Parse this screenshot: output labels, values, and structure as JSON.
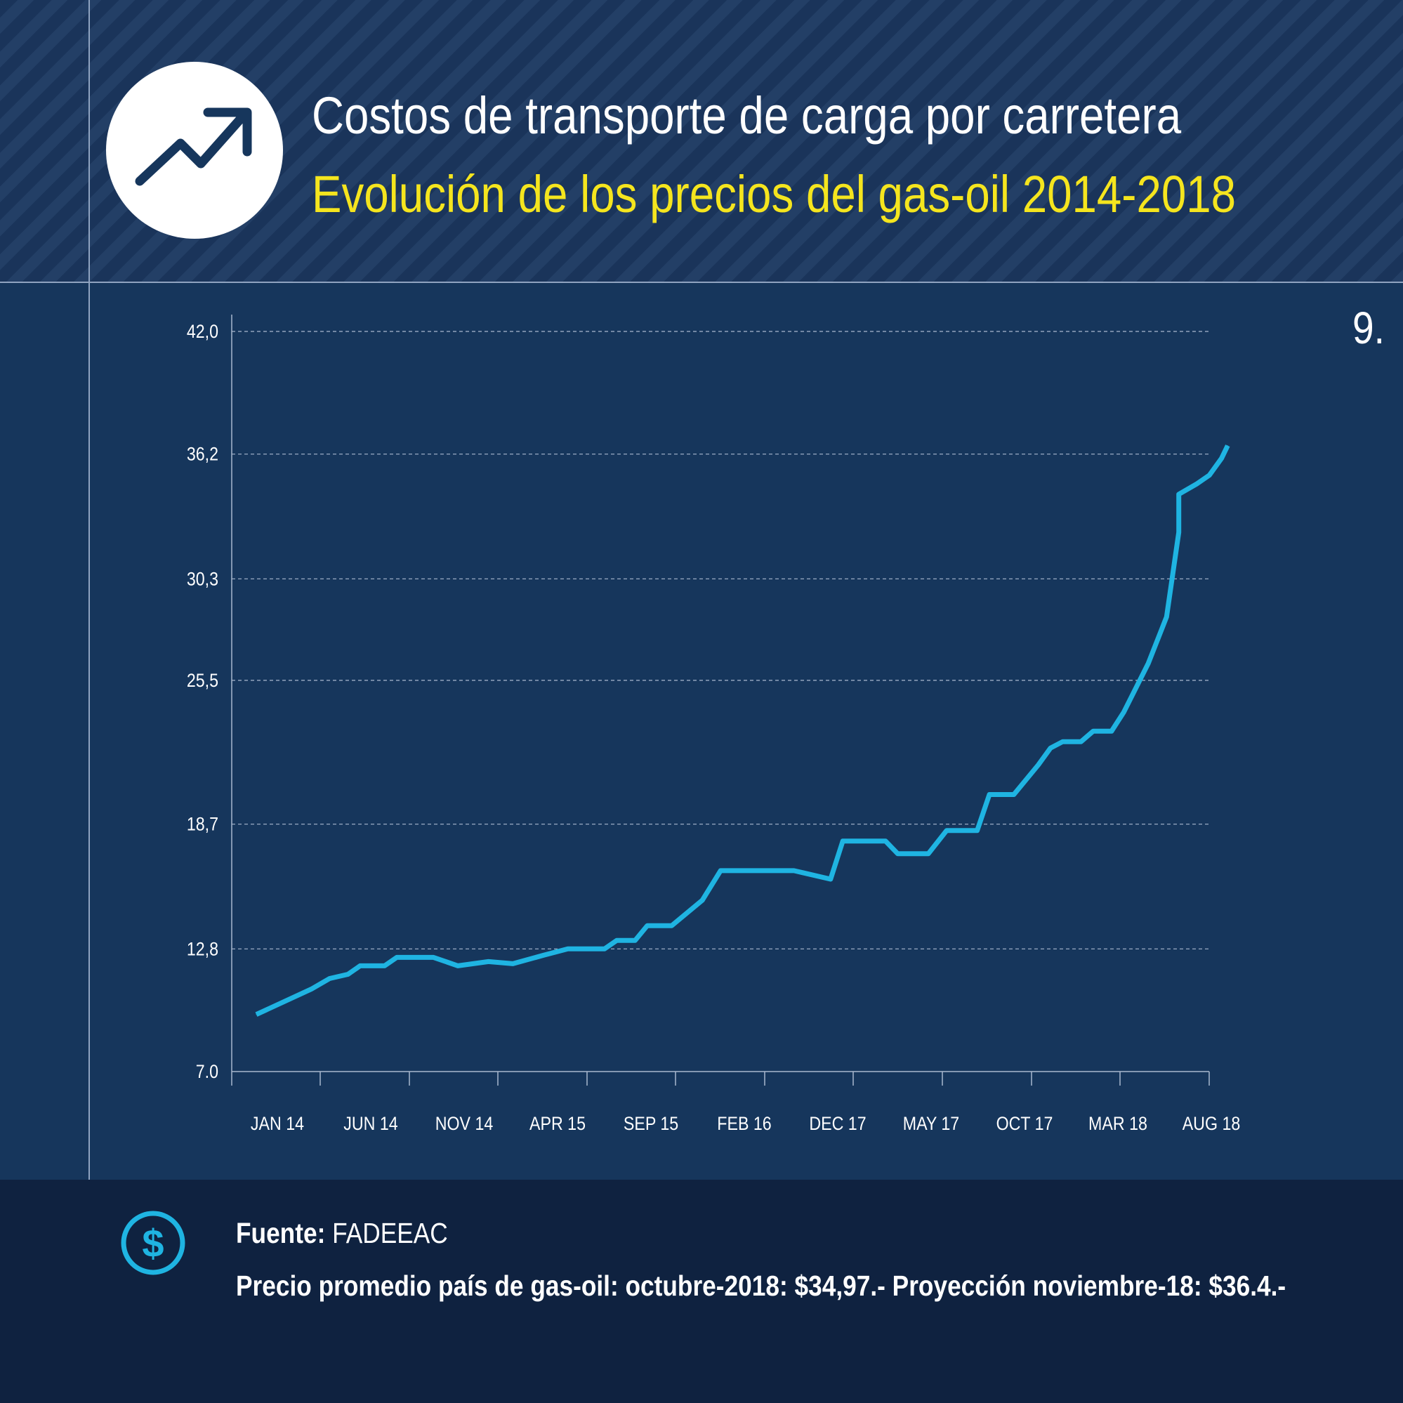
{
  "header": {
    "title": "Costos de transporte de carga por carretera",
    "subtitle": "Evolución de los precios del gas-oil 2014-2018",
    "page_number": "9.",
    "icon": "trending-up-icon"
  },
  "footer": {
    "source_label": "Fuente:",
    "source_value": "FADEEAC",
    "note": "Precio promedio país de gas-oil: octubre-2018: $34,97.- Proyección noviembre-18: $36.4.-",
    "icon": "dollar-icon"
  },
  "colors": {
    "line": "#1fb4e2",
    "title": "#ffffff",
    "subtitle": "#f5e51e",
    "grid": "#a9b8cf",
    "axis_text": "#ffffff"
  },
  "chart_data": {
    "type": "line",
    "title": "Evolución de los precios del gas-oil 2014-2018",
    "xlabel": "",
    "ylabel": "",
    "ylim": [
      7.0,
      42.0
    ],
    "y_ticks": [
      "7.0",
      "12,8",
      "18,7",
      "25,5",
      "30,3",
      "36,2",
      "42,0"
    ],
    "y_tick_values": [
      7.0,
      12.8,
      18.7,
      25.5,
      30.3,
      36.2,
      42.0
    ],
    "x_tick_labels": [
      "JAN 14",
      "JUN 14",
      "NOV 14",
      "APR 15",
      "SEP 15",
      "FEB 16",
      "DEC 17",
      "MAY 17",
      "OCT 17",
      "MAR 18",
      "AUG 18"
    ],
    "grid": "horizontal dashed",
    "series": [
      {
        "points": [
          [
            0.0,
            9.7
          ],
          [
            0.9,
            10.9
          ],
          [
            1.2,
            11.4
          ],
          [
            1.5,
            11.6
          ],
          [
            1.7,
            12.0
          ],
          [
            2.1,
            12.0
          ],
          [
            2.3,
            12.4
          ],
          [
            2.9,
            12.4
          ],
          [
            3.3,
            12.0
          ],
          [
            3.8,
            12.2
          ],
          [
            4.2,
            12.1
          ],
          [
            4.7,
            12.5
          ],
          [
            5.1,
            12.8
          ],
          [
            5.7,
            12.8
          ],
          [
            5.9,
            13.2
          ],
          [
            6.2,
            13.2
          ],
          [
            6.4,
            13.9
          ],
          [
            6.8,
            13.9
          ],
          [
            7.3,
            15.1
          ],
          [
            7.6,
            16.5
          ],
          [
            8.8,
            16.5
          ],
          [
            9.4,
            16.1
          ],
          [
            9.6,
            17.9
          ],
          [
            10.3,
            17.9
          ],
          [
            10.5,
            17.3
          ],
          [
            11.0,
            17.3
          ],
          [
            11.3,
            18.4
          ],
          [
            11.8,
            18.4
          ],
          [
            12.0,
            20.1
          ],
          [
            12.4,
            20.1
          ],
          [
            12.8,
            21.5
          ],
          [
            13.0,
            22.3
          ],
          [
            13.2,
            22.6
          ],
          [
            13.5,
            22.6
          ],
          [
            13.7,
            23.1
          ],
          [
            14.0,
            23.1
          ],
          [
            14.2,
            24.0
          ],
          [
            14.6,
            26.3
          ],
          [
            14.9,
            28.5
          ],
          [
            15.1,
            32.5
          ],
          [
            15.1,
            34.3
          ],
          [
            15.4,
            34.8
          ],
          [
            15.6,
            35.2
          ],
          [
            15.8,
            36.0
          ],
          [
            15.9,
            36.6
          ]
        ]
      }
    ]
  }
}
